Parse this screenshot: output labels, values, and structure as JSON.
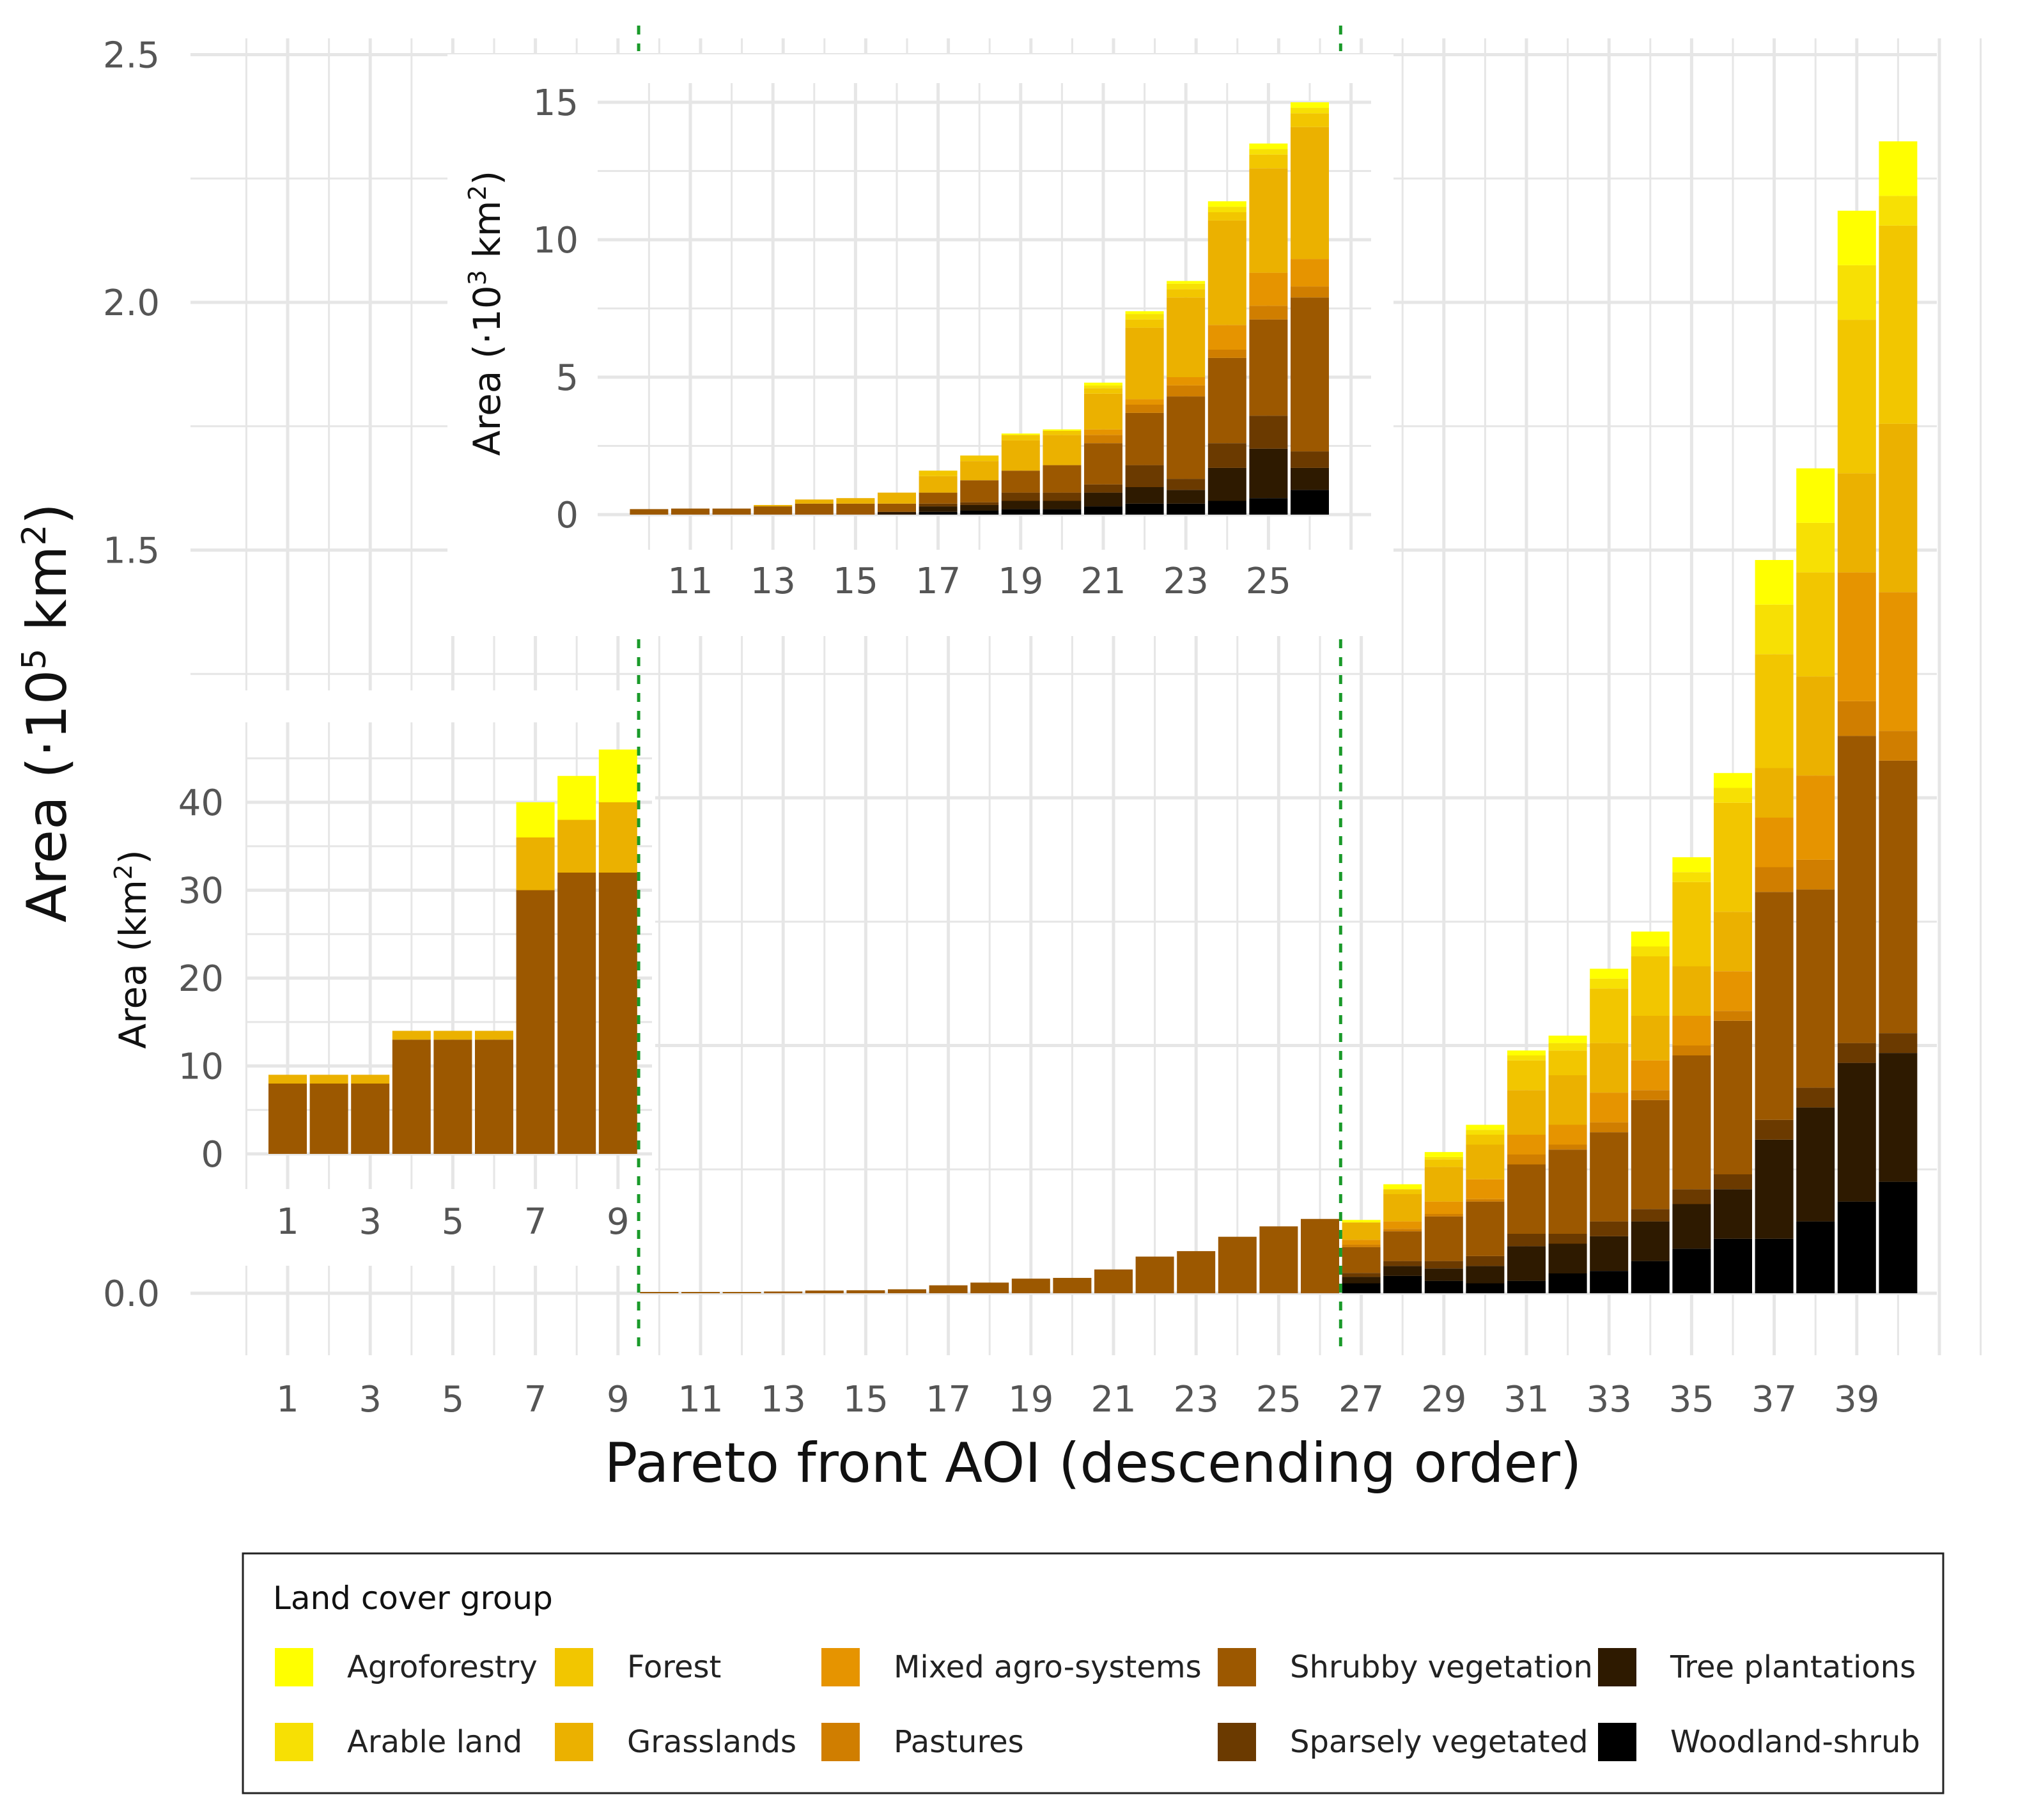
{
  "palette": {
    "Agroforestry": "#ffff00",
    "Arable land": "#f7e004",
    "Forest": "#f2c600",
    "Grasslands": "#ebb100",
    "Mixed agro-systems": "#e69400",
    "Pastures": "#d07e00",
    "Shrubby vegetation": "#9c5800",
    "Sparsely vegetated": "#6b3a00",
    "Tree plantations": "#2e1a00",
    "Woodland-shrub": "#000000"
  },
  "legend": {
    "title": "Land cover group",
    "items": [
      "Agroforestry",
      "Arable land",
      "Forest",
      "Grasslands",
      "Mixed agro-systems",
      "Pastures",
      "Shrubby vegetation",
      "Sparsely vegetated",
      "Tree plantations",
      "Woodland-shrub"
    ]
  },
  "chart_data": [
    {
      "id": "main",
      "type": "bar",
      "stacked": true,
      "title": "",
      "xlabel": "Pareto front AOI (descending order)",
      "ylabel_prefix": "Area (·10",
      "ylabel_sup": "5",
      "ylabel_mid": " km",
      "ylabel_sup2": "2",
      "ylabel_suffix": ")",
      "ylim": [
        0,
        2.5
      ],
      "yticks": [
        "0.0",
        "1.5",
        "2.0",
        "2.5"
      ],
      "xticks": [
        "1",
        "3",
        "5",
        "7",
        "9",
        "11",
        "13",
        "15",
        "17",
        "19",
        "21",
        "23",
        "25",
        "27",
        "29",
        "31",
        "33",
        "35",
        "37",
        "39"
      ],
      "vlines": [
        9.5,
        26.5
      ],
      "units": "1e5 km2",
      "stack_order": [
        "Woodland-shrub",
        "Tree plantations",
        "Sparsely vegetated",
        "Shrubby vegetation",
        "Pastures",
        "Mixed agro-systems",
        "Grasslands",
        "Forest",
        "Arable land",
        "Agroforestry"
      ],
      "bars": [
        {
          "x": 27,
          "values": [
            0.02,
            0.013,
            0.008,
            0.052,
            0.005,
            0.01,
            0.035,
            0.0,
            0.0,
            0.005
          ]
        },
        {
          "x": 28,
          "values": [
            0.035,
            0.02,
            0.01,
            0.06,
            0.005,
            0.015,
            0.055,
            0.01,
            0.0,
            0.01
          ]
        },
        {
          "x": 29,
          "values": [
            0.025,
            0.025,
            0.015,
            0.09,
            0.005,
            0.025,
            0.07,
            0.015,
            0.005,
            0.01
          ]
        },
        {
          "x": 30,
          "values": [
            0.02,
            0.035,
            0.02,
            0.11,
            0.005,
            0.04,
            0.07,
            0.02,
            0.01,
            0.01
          ]
        },
        {
          "x": 31,
          "values": [
            0.025,
            0.07,
            0.025,
            0.14,
            0.02,
            0.04,
            0.09,
            0.06,
            0.01,
            0.01
          ]
        },
        {
          "x": 32,
          "values": [
            0.04,
            0.06,
            0.02,
            0.17,
            0.01,
            0.04,
            0.1,
            0.05,
            0.015,
            0.015
          ]
        },
        {
          "x": 33,
          "values": [
            0.045,
            0.07,
            0.03,
            0.18,
            0.02,
            0.06,
            0.1,
            0.11,
            0.02,
            0.02
          ]
        },
        {
          "x": 34,
          "values": [
            0.065,
            0.08,
            0.025,
            0.22,
            0.02,
            0.06,
            0.09,
            0.12,
            0.02,
            0.03
          ]
        },
        {
          "x": 35,
          "values": [
            0.09,
            0.09,
            0.03,
            0.27,
            0.02,
            0.06,
            0.1,
            0.17,
            0.02,
            0.03
          ]
        },
        {
          "x": 36,
          "values": [
            0.11,
            0.1,
            0.03,
            0.31,
            0.02,
            0.08,
            0.12,
            0.22,
            0.03,
            0.03
          ]
        },
        {
          "x": 37,
          "values": [
            0.11,
            0.2,
            0.04,
            0.46,
            0.05,
            0.1,
            0.1,
            0.23,
            0.1,
            0.09
          ]
        },
        {
          "x": 38,
          "values": [
            0.145,
            0.23,
            0.04,
            0.4,
            0.06,
            0.17,
            0.2,
            0.21,
            0.1,
            0.11
          ]
        },
        {
          "x": 39,
          "values": [
            0.185,
            0.28,
            0.04,
            0.62,
            0.07,
            0.26,
            0.2,
            0.31,
            0.11,
            0.11
          ]
        },
        {
          "x": 40,
          "values": [
            0.225,
            0.26,
            0.04,
            0.55,
            0.06,
            0.28,
            0.34,
            0.4,
            0.06,
            0.11
          ]
        }
      ]
    },
    {
      "id": "inset-mid",
      "type": "bar",
      "stacked": true,
      "ylabel_prefix": "Area (·10",
      "ylabel_sup": "3",
      "ylabel_mid": " km",
      "ylabel_sup2": "2",
      "ylabel_suffix": ")",
      "ylim": [
        0,
        15
      ],
      "yticks": [
        "0",
        "5",
        "10",
        "15"
      ],
      "xticks": [
        "11",
        "13",
        "15",
        "17",
        "19",
        "21",
        "23",
        "25"
      ],
      "units": "1e3 km2",
      "stack_order": [
        "Woodland-shrub",
        "Tree plantations",
        "Sparsely vegetated",
        "Shrubby vegetation",
        "Pastures",
        "Mixed agro-systems",
        "Grasslands",
        "Forest",
        "Arable land",
        "Agroforestry"
      ],
      "bars": [
        {
          "x": 10,
          "values": [
            0,
            0,
            0,
            0.2,
            0,
            0,
            0,
            0,
            0,
            0
          ]
        },
        {
          "x": 11,
          "values": [
            0,
            0,
            0,
            0.22,
            0,
            0,
            0,
            0,
            0,
            0
          ]
        },
        {
          "x": 12,
          "values": [
            0,
            0,
            0,
            0.22,
            0,
            0,
            0,
            0,
            0,
            0
          ]
        },
        {
          "x": 13,
          "values": [
            0,
            0,
            0,
            0.3,
            0,
            0,
            0.05,
            0,
            0,
            0
          ]
        },
        {
          "x": 14,
          "values": [
            0,
            0,
            0,
            0.4,
            0,
            0,
            0.15,
            0,
            0,
            0
          ]
        },
        {
          "x": 15,
          "values": [
            0,
            0,
            0,
            0.4,
            0,
            0,
            0.2,
            0,
            0,
            0
          ]
        },
        {
          "x": 16,
          "values": [
            0,
            0.1,
            0,
            0.3,
            0,
            0,
            0.4,
            0,
            0,
            0
          ]
        },
        {
          "x": 17,
          "values": [
            0.1,
            0.2,
            0.1,
            0.4,
            0,
            0,
            0.6,
            0.2,
            0,
            0
          ]
        },
        {
          "x": 18,
          "values": [
            0.15,
            0.2,
            0.1,
            0.8,
            0,
            0,
            0.7,
            0.2,
            0,
            0
          ]
        },
        {
          "x": 19,
          "values": [
            0.2,
            0.3,
            0.3,
            0.8,
            0,
            0,
            1.1,
            0.2,
            0,
            0.05
          ]
        },
        {
          "x": 20,
          "values": [
            0.2,
            0.3,
            0.3,
            1.0,
            0,
            0,
            1.1,
            0.15,
            0,
            0.05
          ]
        },
        {
          "x": 21,
          "values": [
            0.3,
            0.5,
            0.3,
            1.5,
            0.3,
            0.2,
            1.3,
            0.2,
            0.1,
            0.1
          ]
        },
        {
          "x": 22,
          "values": [
            0.4,
            0.6,
            0.8,
            1.9,
            0.3,
            0.2,
            2.6,
            0.3,
            0.2,
            0.1
          ]
        },
        {
          "x": 23,
          "values": [
            0.4,
            0.5,
            0.4,
            3.0,
            0.4,
            0.3,
            2.9,
            0.3,
            0.2,
            0.1
          ]
        },
        {
          "x": 24,
          "values": [
            0.5,
            1.2,
            0.9,
            3.1,
            0.3,
            0.9,
            3.8,
            0.3,
            0.2,
            0.2
          ]
        },
        {
          "x": 25,
          "values": [
            0.6,
            1.8,
            1.2,
            3.5,
            0.5,
            1.2,
            3.8,
            0.5,
            0.2,
            0.2
          ]
        },
        {
          "x": 26,
          "values": [
            0.9,
            0.8,
            0.6,
            5.6,
            0.4,
            1.0,
            4.8,
            0.5,
            0.2,
            0.2
          ]
        }
      ]
    },
    {
      "id": "inset-low",
      "type": "bar",
      "stacked": true,
      "ylabel_prefix": "Area (km",
      "ylabel_sup": "2",
      "ylabel_suffix": ")",
      "ylim": [
        0,
        48
      ],
      "yticks": [
        "0",
        "10",
        "20",
        "30",
        "40"
      ],
      "xticks": [
        "1",
        "3",
        "5",
        "7",
        "9"
      ],
      "units": "km2",
      "stack_order": [
        "Woodland-shrub",
        "Tree plantations",
        "Sparsely vegetated",
        "Shrubby vegetation",
        "Pastures",
        "Mixed agro-systems",
        "Grasslands",
        "Forest",
        "Arable land",
        "Agroforestry"
      ],
      "bars": [
        {
          "x": 1,
          "values": [
            0,
            0,
            0,
            8,
            0,
            0,
            1,
            0,
            0,
            0
          ]
        },
        {
          "x": 2,
          "values": [
            0,
            0,
            0,
            8,
            0,
            0,
            1,
            0,
            0,
            0
          ]
        },
        {
          "x": 3,
          "values": [
            0,
            0,
            0,
            8,
            0,
            0,
            1,
            0,
            0,
            0
          ]
        },
        {
          "x": 4,
          "values": [
            0,
            0,
            0,
            13,
            0,
            0,
            1,
            0,
            0,
            0
          ]
        },
        {
          "x": 5,
          "values": [
            0,
            0,
            0,
            13,
            0,
            0,
            1,
            0,
            0,
            0
          ]
        },
        {
          "x": 6,
          "values": [
            0,
            0,
            0,
            13,
            0,
            0,
            1,
            0,
            0,
            0
          ]
        },
        {
          "x": 7,
          "values": [
            0,
            0,
            0,
            30,
            0,
            0,
            6,
            0,
            0,
            4
          ]
        },
        {
          "x": 8,
          "values": [
            0,
            0,
            0,
            32,
            0,
            0,
            6,
            0,
            0,
            5
          ]
        },
        {
          "x": 9,
          "values": [
            0,
            0,
            0,
            32,
            0,
            0,
            8,
            0,
            0,
            6
          ]
        }
      ]
    }
  ]
}
